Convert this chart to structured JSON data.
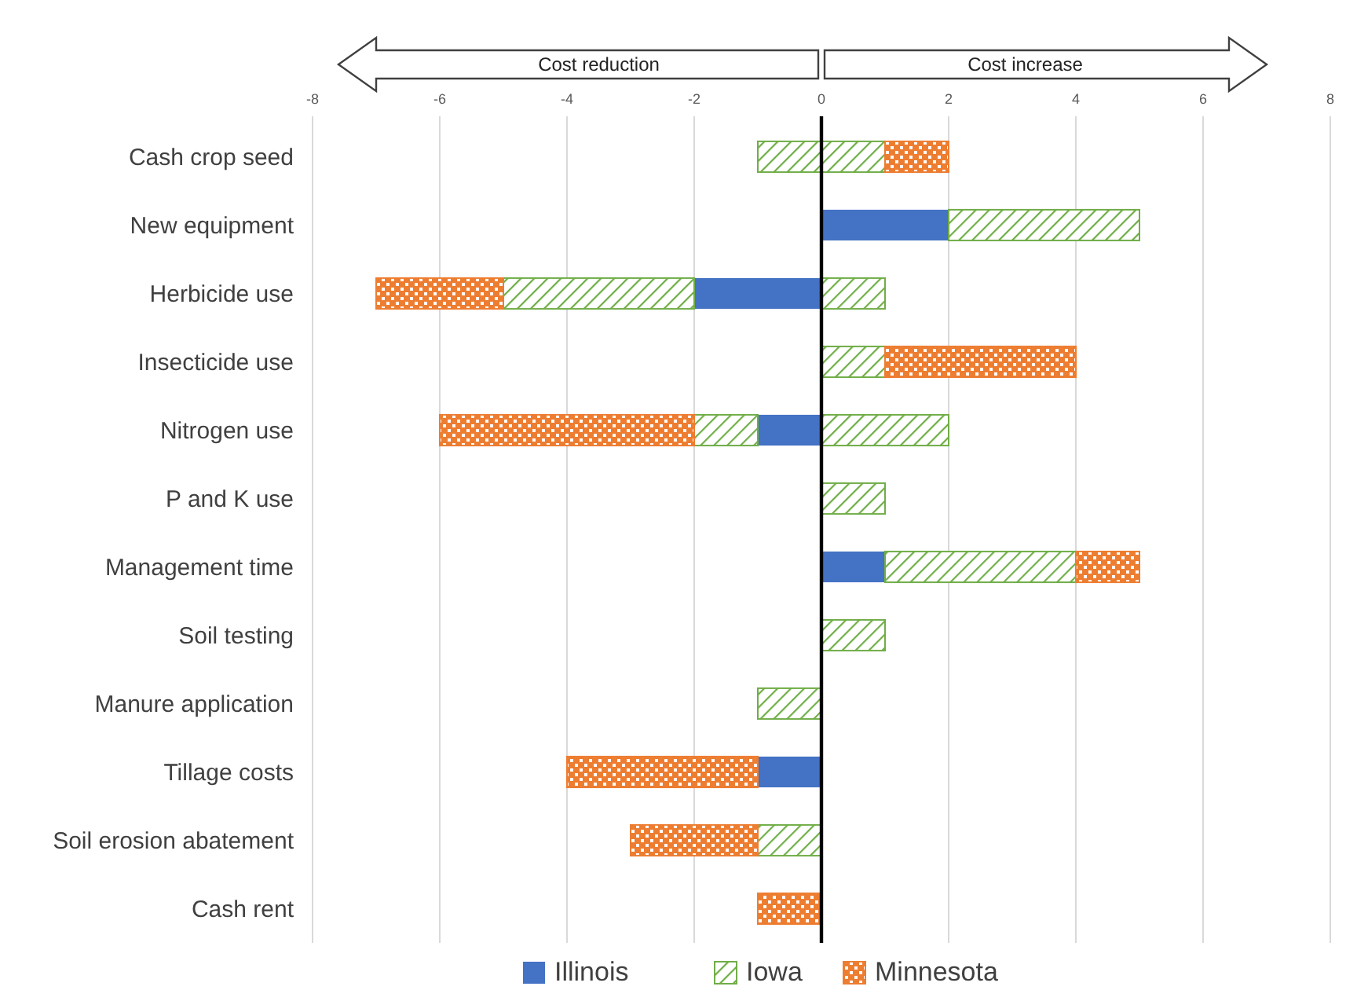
{
  "chart_data": {
    "type": "bar",
    "orientation": "horizontal",
    "stacked": true,
    "categories": [
      "Cash crop seed",
      "New equipment",
      "Herbicide use",
      "Insecticide use",
      "Nitrogen use",
      "P and K use",
      "Management time",
      "Soil testing",
      "Manure application",
      "Tillage costs",
      "Soil erosion abatement",
      "Cash rent"
    ],
    "series": [
      {
        "name": "Illinois",
        "color": "#4472c4",
        "values": [
          null,
          2,
          -2,
          null,
          -1,
          null,
          1,
          null,
          null,
          -1,
          null,
          null
        ]
      },
      {
        "name": "Iowa",
        "color": "#70ad47",
        "values": [
          1,
          3,
          1,
          1,
          2,
          1,
          3,
          1,
          null,
          null,
          null,
          null
        ]
      },
      {
        "color": "#70ad47",
        "values": [
          -1,
          null,
          -3,
          null,
          -1,
          null,
          null,
          null,
          -1,
          null,
          -1,
          null
        ]
      },
      {
        "name": "Minnesota",
        "color": "#ed7d31",
        "values": [
          1,
          null,
          -2,
          3,
          -4,
          null,
          1,
          null,
          null,
          -3,
          -2,
          -1
        ]
      }
    ],
    "xlim": [
      -8,
      8
    ],
    "xticks": [
      -8,
      -6,
      -4,
      -2,
      0,
      2,
      4,
      6,
      8
    ],
    "grid": "x",
    "legend": "bottom",
    "annotations": [
      "Cost reduction",
      "Cost increase"
    ]
  }
}
